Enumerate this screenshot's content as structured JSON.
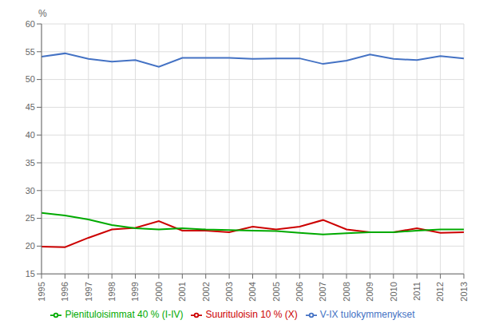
{
  "chart_data": {
    "type": "line",
    "ylabel": "%",
    "x": [
      1995,
      1996,
      1997,
      1998,
      1999,
      2000,
      2001,
      2002,
      2003,
      2004,
      2005,
      2006,
      2007,
      2008,
      2009,
      2010,
      2011,
      2012,
      2013
    ],
    "series": [
      {
        "name": "Suurituloisin 10 % (X)",
        "color": "#cc0000",
        "values": [
          19.9,
          19.8,
          21.5,
          23.0,
          23.3,
          24.5,
          22.8,
          22.8,
          22.5,
          23.5,
          23.0,
          23.5,
          24.7,
          23.0,
          22.5,
          22.5,
          23.2,
          22.4,
          22.5
        ]
      },
      {
        "name": "Pienituloisimmat 40 % (I-IV)",
        "color": "#00aa00",
        "values": [
          26.0,
          25.5,
          24.8,
          23.8,
          23.2,
          23.0,
          23.2,
          23.0,
          22.9,
          22.8,
          22.7,
          22.4,
          22.1,
          22.3,
          22.5,
          22.5,
          22.8,
          23.0,
          23.0
        ]
      },
      {
        "name": "V-IX tulokymmenykset",
        "color": "#4472c4",
        "values": [
          54.1,
          54.7,
          53.7,
          53.2,
          53.5,
          52.3,
          53.9,
          53.9,
          53.9,
          53.7,
          53.8,
          53.8,
          52.8,
          53.4,
          54.5,
          53.7,
          53.5,
          54.2,
          53.8
        ]
      }
    ],
    "xlim": [
      1995,
      2013
    ],
    "xticks": [
      1995,
      1996,
      1997,
      1998,
      1999,
      2000,
      2001,
      2002,
      2003,
      2004,
      2005,
      2006,
      2007,
      2008,
      2009,
      2010,
      2011,
      2012,
      2013
    ],
    "ylim": [
      15,
      60
    ],
    "yticks": [
      15,
      20,
      25,
      30,
      35,
      40,
      45,
      50,
      55,
      60
    ],
    "grid": true,
    "legend": "bottom"
  }
}
